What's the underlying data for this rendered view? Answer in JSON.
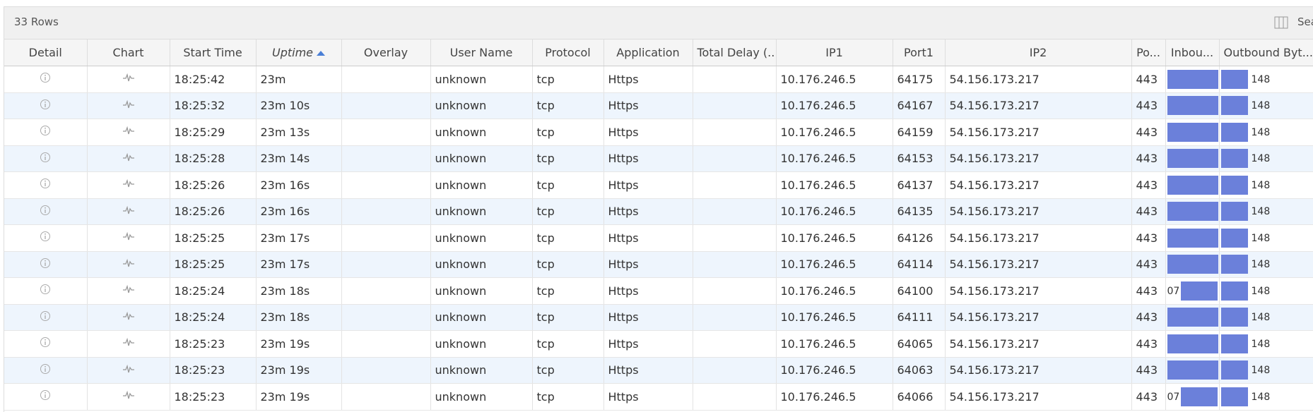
{
  "toolbar": {
    "row_count": "33 Rows",
    "search": "Sea"
  },
  "table": {
    "headers": [
      "Detail",
      "Chart",
      "Start Time",
      "Uptime",
      "Overlay",
      "User Name",
      "Protocol",
      "Application",
      "Total Delay (...",
      "IP1",
      "Port1",
      "IP2",
      "Po...",
      "Inbou...",
      "Outbound Byt..."
    ],
    "rows": [
      {
        "start": "18:25:42",
        "uptime": "23m",
        "user": "unknown",
        "protocol": "tcp",
        "app": "Https",
        "ip1": "10.176.246.5",
        "port1": "64175",
        "ip2": "54.156.173.217",
        "port2": "443",
        "outbound": "148"
      },
      {
        "start": "18:25:32",
        "uptime": "23m 10s",
        "user": "unknown",
        "protocol": "tcp",
        "app": "Https",
        "ip1": "10.176.246.5",
        "port1": "64167",
        "ip2": "54.156.173.217",
        "port2": "443",
        "outbound": "148"
      },
      {
        "start": "18:25:29",
        "uptime": "23m 13s",
        "user": "unknown",
        "protocol": "tcp",
        "app": "Https",
        "ip1": "10.176.246.5",
        "port1": "64159",
        "ip2": "54.156.173.217",
        "port2": "443",
        "outbound": "148"
      },
      {
        "start": "18:25:28",
        "uptime": "23m 14s",
        "user": "unknown",
        "protocol": "tcp",
        "app": "Https",
        "ip1": "10.176.246.5",
        "port1": "64153",
        "ip2": "54.156.173.217",
        "port2": "443",
        "outbound": "148"
      },
      {
        "start": "18:25:26",
        "uptime": "23m 16s",
        "user": "unknown",
        "protocol": "tcp",
        "app": "Https",
        "ip1": "10.176.246.5",
        "port1": "64137",
        "ip2": "54.156.173.217",
        "port2": "443",
        "outbound": "148"
      },
      {
        "start": "18:25:26",
        "uptime": "23m 16s",
        "user": "unknown",
        "protocol": "tcp",
        "app": "Https",
        "ip1": "10.176.246.5",
        "port1": "64135",
        "ip2": "54.156.173.217",
        "port2": "443",
        "outbound": "148"
      },
      {
        "start": "18:25:25",
        "uptime": "23m 17s",
        "user": "unknown",
        "protocol": "tcp",
        "app": "Https",
        "ip1": "10.176.246.5",
        "port1": "64126",
        "ip2": "54.156.173.217",
        "port2": "443",
        "outbound": "148"
      },
      {
        "start": "18:25:25",
        "uptime": "23m 17s",
        "user": "unknown",
        "protocol": "tcp",
        "app": "Https",
        "ip1": "10.176.246.5",
        "port1": "64114",
        "ip2": "54.156.173.217",
        "port2": "443",
        "outbound": "148"
      },
      {
        "start": "18:25:24",
        "uptime": "23m 18s",
        "user": "unknown",
        "protocol": "tcp",
        "app": "Https",
        "ip1": "10.176.246.5",
        "port1": "64100",
        "ip2": "54.156.173.217",
        "port2": "443",
        "inbound": "07",
        "outbound": "148"
      },
      {
        "start": "18:25:24",
        "uptime": "23m 18s",
        "user": "unknown",
        "protocol": "tcp",
        "app": "Https",
        "ip1": "10.176.246.5",
        "port1": "64111",
        "ip2": "54.156.173.217",
        "port2": "443",
        "outbound": "148"
      },
      {
        "start": "18:25:23",
        "uptime": "23m 19s",
        "user": "unknown",
        "protocol": "tcp",
        "app": "Https",
        "ip1": "10.176.246.5",
        "port1": "64065",
        "ip2": "54.156.173.217",
        "port2": "443",
        "outbound": "148"
      },
      {
        "start": "18:25:23",
        "uptime": "23m 19s",
        "user": "unknown",
        "protocol": "tcp",
        "app": "Https",
        "ip1": "10.176.246.5",
        "port1": "64063",
        "ip2": "54.156.173.217",
        "port2": "443",
        "outbound": "148"
      },
      {
        "start": "18:25:23",
        "uptime": "23m 19s",
        "user": "unknown",
        "protocol": "tcp",
        "app": "Https",
        "ip1": "10.176.246.5",
        "port1": "64066",
        "ip2": "54.156.173.217",
        "port2": "443",
        "inbound": "07",
        "outbound": "148"
      }
    ]
  }
}
